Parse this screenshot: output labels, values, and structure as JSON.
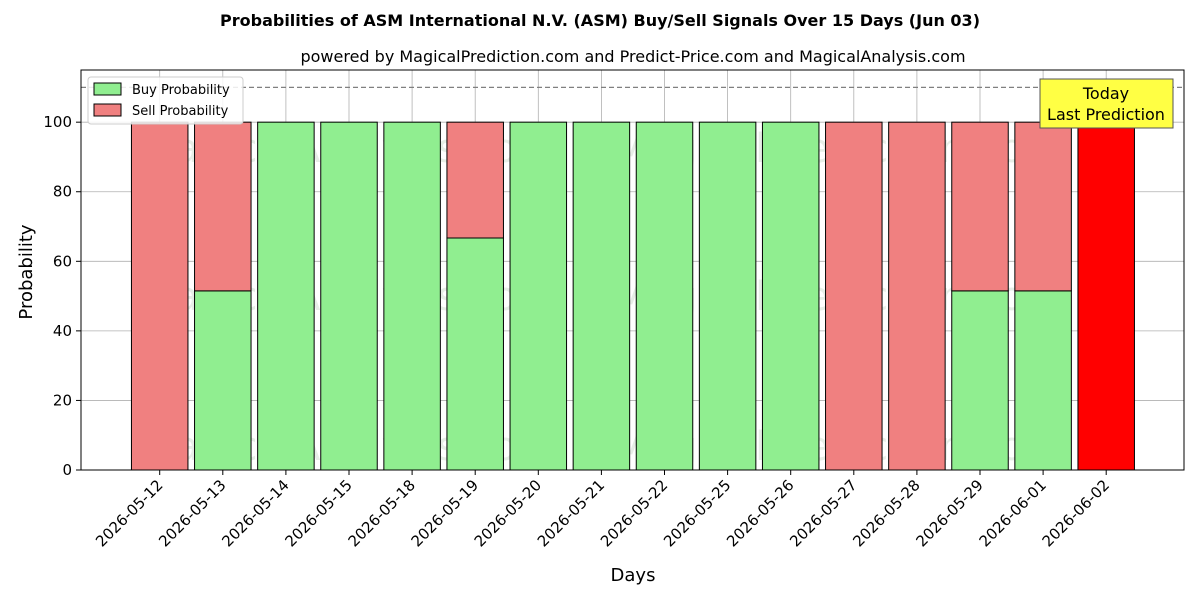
{
  "chart_data": {
    "type": "bar",
    "stacked": true,
    "title": "Probabilities of ASM International N.V. (ASM) Buy/Sell Signals Over 15 Days (Jun 03)",
    "subtitle": "powered by MagicalPrediction.com and Predict-Price.com and MagicalAnalysis.com",
    "xlabel": "Days",
    "ylabel": "Probability",
    "ylim": [
      0,
      115
    ],
    "yticks": [
      0,
      20,
      40,
      60,
      80,
      100
    ],
    "grid": true,
    "legend_position": "top-left",
    "categories": [
      "2026-05-12",
      "2026-05-13",
      "2026-05-14",
      "2026-05-15",
      "2026-05-18",
      "2026-05-19",
      "2026-05-20",
      "2026-05-21",
      "2026-05-22",
      "2026-05-25",
      "2026-05-26",
      "2026-05-27",
      "2026-05-28",
      "2026-05-29",
      "2026-06-01",
      "2026-06-02"
    ],
    "series": [
      {
        "name": "Buy Probability",
        "color": "#90ee90",
        "values": [
          0,
          51.5,
          100,
          100,
          100,
          66.7,
          100,
          100,
          100,
          100,
          100,
          0,
          0,
          51.5,
          51.5,
          0
        ]
      },
      {
        "name": "Sell Probability",
        "color": "#f08080",
        "values": [
          100,
          48.5,
          0,
          0,
          0,
          33.3,
          0,
          0,
          0,
          0,
          0,
          100,
          100,
          48.5,
          48.5,
          100
        ]
      }
    ],
    "highlight": {
      "category": "2026-06-02",
      "color": "#ff0000"
    },
    "reference_line": {
      "y": 110,
      "style": "dashed",
      "color": "#808080"
    },
    "annotation": {
      "lines": [
        "Today",
        "Last Prediction"
      ],
      "background": "#ffff44",
      "position": "top-right"
    },
    "watermarks": [
      "MagicalAnalysis.com",
      "MagicalPrediction.com"
    ]
  }
}
